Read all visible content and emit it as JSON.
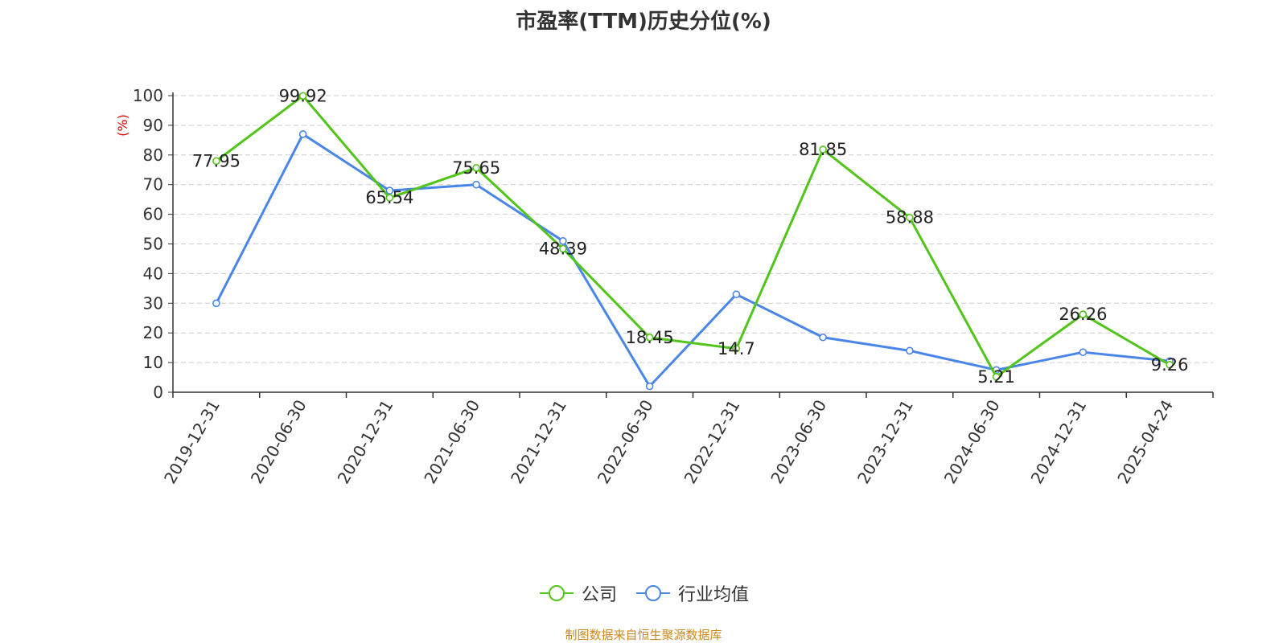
{
  "title": "市盈率(TTM)历史分位(%)",
  "source": "制图数据来自恒生聚源数据库",
  "colors": {
    "company": "#52c41a",
    "industry": "#4a86e8",
    "source": "#c8891e",
    "ylabel": "#e00000",
    "grid": "#cccccc",
    "axis": "#333333"
  },
  "chart_data": {
    "type": "line",
    "title": "市盈率(TTM)历史分位(%)",
    "ylabel": "(%)",
    "xlabel": "",
    "ylim": [
      0,
      100
    ],
    "yticks": [
      0,
      10,
      20,
      30,
      40,
      50,
      60,
      70,
      80,
      90,
      100
    ],
    "grid": true,
    "legend_position": "bottom-center",
    "categories": [
      "2019-12-31",
      "2020-06-30",
      "2020-12-31",
      "2021-06-30",
      "2021-12-31",
      "2022-06-30",
      "2022-12-31",
      "2023-06-30",
      "2023-12-31",
      "2024-06-30",
      "2024-12-31",
      "2025-04-24"
    ],
    "series": [
      {
        "name": "公司",
        "values": [
          77.95,
          99.92,
          65.54,
          75.65,
          48.39,
          18.45,
          14.7,
          81.85,
          58.88,
          5.21,
          26.26,
          9.26
        ],
        "labels": [
          "77.95",
          "99.92",
          "65.54",
          "75.65",
          "48.39",
          "18.45",
          "14.7",
          "81.85",
          "58.88",
          "5.21",
          "26.26",
          "9.26"
        ]
      },
      {
        "name": "行业均值",
        "values": [
          30,
          87,
          68,
          70,
          51,
          2,
          33,
          18.5,
          14,
          7.5,
          13.5,
          10.5
        ]
      }
    ]
  }
}
